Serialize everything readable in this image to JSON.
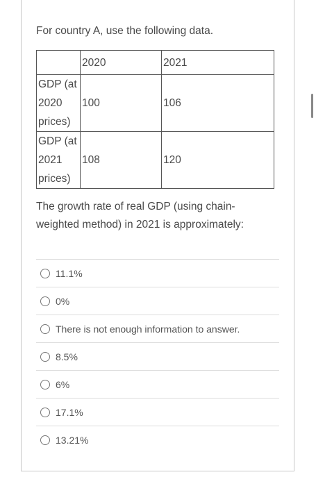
{
  "intro": "For country A, use the following data.",
  "table": {
    "header": [
      "2020",
      "2021"
    ],
    "rows": [
      [
        "GDP (at 2020 prices)",
        100,
        106
      ],
      [
        "GDP (at 2021 prices)",
        108,
        120
      ]
    ]
  },
  "question": "The growth rate of real GDP (using chain-weighted method) in 2021 is approximately:",
  "options": [
    "11.1%",
    "0%",
    "There is not enough information to answer.",
    "8.5%",
    "6%",
    "17.1%",
    "13.21%"
  ]
}
